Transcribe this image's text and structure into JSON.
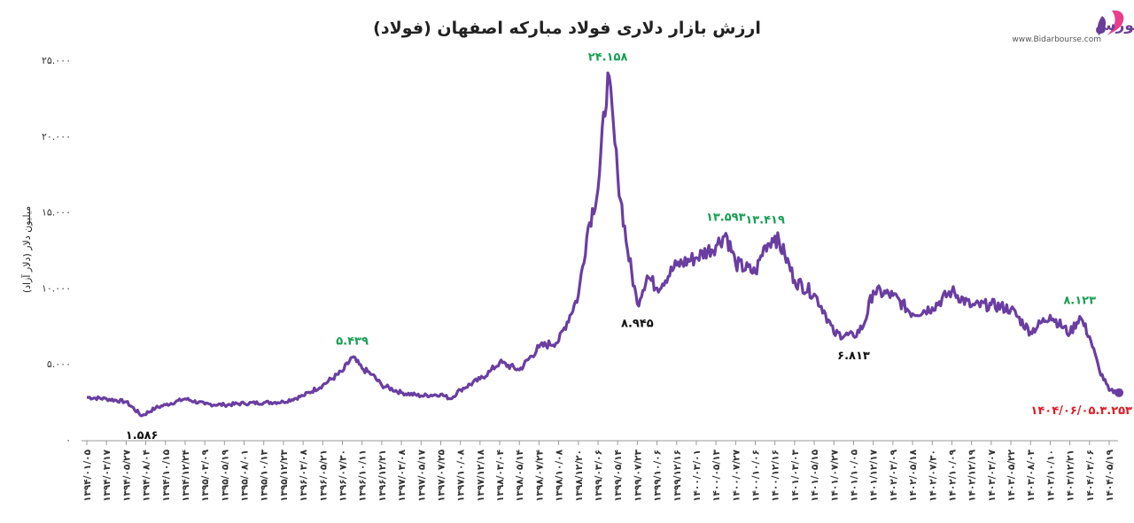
{
  "brand": {
    "name": "بیدار بورس",
    "url": "www.Bidarbourse.com",
    "accent": "#6a3e98",
    "accent2": "#e83e8c"
  },
  "chart_data": {
    "type": "line",
    "title": "ارزش بازار دلاری فولاد مبارکه اصفهان (فولاد)",
    "ylabel": "میلیون دلار (دلار آزاد)",
    "xlabel": "",
    "ylim": [
      0,
      25000
    ],
    "y_ticks": [
      "۰",
      "۵.۰۰۰",
      "۱۰.۰۰۰",
      "۱۵.۰۰۰",
      "۲۰.۰۰۰",
      "۲۵.۰۰۰"
    ],
    "line_color": "#6a3ea1",
    "x_ticks": [
      "۱۳۹۴/۰۱/۰۵",
      "۱۳۹۴/۰۳/۱۷",
      "۱۳۹۴/۰۵/۲۷",
      "۱۳۹۴/۰۸/۰۴",
      "۱۳۹۴/۱۰/۱۵",
      "۱۳۹۴/۱۲/۲۴",
      "۱۳۹۵/۰۳/۰۹",
      "۱۳۹۵/۰۵/۱۹",
      "۱۳۹۵/۰۸/۰۱",
      "۱۳۹۵/۱۰/۱۳",
      "۱۳۹۵/۱۲/۲۳",
      "۱۳۹۶/۰۳/۰۸",
      "۱۳۹۶/۰۵/۲۱",
      "۱۳۹۶/۰۷/۳۰",
      "۱۳۹۶/۱۰/۱۱",
      "۱۳۹۶/۱۲/۲۱",
      "۱۳۹۷/۰۳/۰۸",
      "۱۳۹۷/۰۵/۱۷",
      "۱۳۹۷/۰۷/۲۵",
      "۱۳۹۷/۱۰/۰۸",
      "۱۳۹۷/۱۲/۱۸",
      "۱۳۹۸/۰۳/۰۴",
      "۱۳۹۸/۰۵/۱۴",
      "۱۳۹۸/۰۷/۲۴",
      "۱۳۹۸/۱۰/۰۸",
      "۱۳۹۸/۱۲/۲۰",
      "۱۳۹۹/۰۳/۰۶",
      "۱۳۹۹/۰۵/۱۴",
      "۱۳۹۹/۰۷/۲۳",
      "۱۳۹۹/۱۰/۰۶",
      "۱۳۹۹/۱۲/۱۶",
      "۱۴۰۰/۰۳/۰۱",
      "۱۴۰۰/۰۵/۱۳",
      "۱۴۰۰/۰۷/۲۷",
      "۱۴۰۰/۱۰/۰۶",
      "۱۴۰۰/۱۲/۱۶",
      "۱۴۰۱/۰۳/۰۳",
      "۱۴۰۱/۰۵/۱۵",
      "۱۴۰۱/۰۷/۲۷",
      "۱۴۰۱/۱۰/۰۵",
      "۱۴۰۱/۱۲/۱۷",
      "۱۴۰۲/۰۳/۰۹",
      "۱۴۰۲/۰۵/۱۸",
      "۱۴۰۲/۰۷/۳۰",
      "۱۴۰۲/۱۰/۰۹",
      "۱۴۰۲/۱۲/۱۹",
      "۱۴۰۳/۰۳/۰۷",
      "۱۴۰۳/۰۵/۲۲",
      "۱۴۰۳/۰۸/۰۳",
      "۱۴۰۳/۱۰/۱۰",
      "۱۴۰۳/۱۲/۲۱",
      "۱۴۰۴/۰۳/۰۶",
      "۱۴۰۴/۰۵/۱۹"
    ],
    "series": [
      {
        "x": [
          0,
          1,
          2,
          2.8,
          3.5,
          4,
          5,
          6,
          7,
          8,
          9,
          10,
          11,
          12,
          13,
          13.5,
          14,
          14.5,
          15,
          16,
          17,
          18,
          18.5,
          19,
          20,
          20.5,
          21,
          22,
          23,
          24,
          25,
          25.5,
          26,
          26.5,
          27,
          27.5,
          28,
          28.5,
          29,
          30,
          31,
          32,
          32.5,
          33,
          34,
          34.5,
          35,
          35.5,
          36,
          37,
          37.5,
          38,
          39,
          39.5,
          40,
          41,
          42,
          43,
          44,
          45,
          46,
          47,
          48,
          49,
          50,
          50.5,
          51,
          51.5,
          52,
          52.5
        ],
        "y": [
          2800,
          2700,
          2500,
          1586,
          2100,
          2300,
          2700,
          2350,
          2300,
          2400,
          2450,
          2500,
          2900,
          3600,
          4500,
          5439,
          4700,
          4300,
          3600,
          3100,
          2900,
          3000,
          2700,
          3300,
          4000,
          4500,
          5100,
          4600,
          6100,
          6500,
          9500,
          14000,
          16500,
          24158,
          17500,
          12500,
          8945,
          10800,
          10000,
          11500,
          12000,
          12800,
          13593,
          11600,
          11000,
          12800,
          13419,
          12200,
          10500,
          9600,
          8500,
          7000,
          6813,
          7500,
          9800,
          9500,
          8300,
          8700,
          9800,
          8800,
          8900,
          8600,
          7100,
          8200,
          7000,
          8123,
          6800,
          4600,
          3253,
          3100
        ]
      }
    ],
    "annotations": [
      {
        "text": "۱.۵۸۶",
        "x": 2.8,
        "y": 1586,
        "color": "#111111",
        "pos": "below"
      },
      {
        "text": "۵.۴۳۹",
        "x": 13.5,
        "y": 5439,
        "color": "#1a9e55",
        "pos": "above"
      },
      {
        "text": "۲۴.۱۵۸",
        "x": 26.5,
        "y": 24158,
        "color": "#1a9e55",
        "pos": "above"
      },
      {
        "text": "۸.۹۴۵",
        "x": 28,
        "y": 8945,
        "color": "#111111",
        "pos": "below"
      },
      {
        "text": "۱۳.۵۹۳",
        "x": 32.5,
        "y": 13593,
        "color": "#1a9e55",
        "pos": "above"
      },
      {
        "text": "۱۳.۴۱۹",
        "x": 34.5,
        "y": 13419,
        "color": "#1a9e55",
        "pos": "above"
      },
      {
        "text": "۶.۸۱۳",
        "x": 39,
        "y": 6813,
        "color": "#111111",
        "pos": "below"
      },
      {
        "text": "۸.۱۲۳",
        "x": 50.5,
        "y": 8123,
        "color": "#1a9e55",
        "pos": "above"
      },
      {
        "text": "۱۴۰۴/۰۶/۰۵.۳.۲۵۳",
        "x": 52,
        "y": 3253,
        "color": "#e01b24",
        "pos": "below-left"
      }
    ],
    "grid": false
  }
}
